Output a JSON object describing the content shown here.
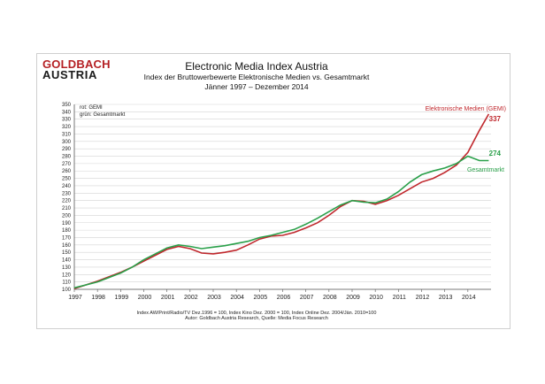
{
  "logo": {
    "line1": "GOLDBACH",
    "line2": "AUSTRIA"
  },
  "header": {
    "title": "Electronic Media Index Austria",
    "subtitle": "Index der Bruttowerbewerte Elektronische Medien vs. Gesamtmarkt",
    "period": "Jänner 1997 –  Dezember 2014"
  },
  "legend": {
    "red": "rot: GEMI",
    "green": "grün: Gesamtmarkt"
  },
  "footer": {
    "line1": "Index AW/Print/Radio/TV Dez.1996 = 100, Index Kino Dez. 2000 = 100, Index Online Dez. 2004/Jän. 2010=100",
    "line2": "Autor: Goldbach Austria Research, Quelle: Media Focus Research"
  },
  "colors": {
    "red": "#c0282d",
    "green": "#2aa04a",
    "grid": "#d4d4d4",
    "axis": "#555555"
  },
  "chart_data": {
    "type": "line",
    "title": "Electronic Media Index Austria",
    "xlabel": "",
    "ylabel": "",
    "xlim": [
      1997,
      2015
    ],
    "ylim": [
      100,
      350
    ],
    "yticks": [
      100,
      110,
      120,
      130,
      140,
      150,
      160,
      170,
      180,
      190,
      200,
      210,
      220,
      230,
      240,
      250,
      260,
      270,
      280,
      290,
      300,
      310,
      320,
      330,
      340,
      350
    ],
    "xticks": [
      "1997",
      "1998",
      "1999",
      "2000",
      "2001",
      "2002",
      "2003",
      "2004",
      "2005",
      "2006",
      "2007",
      "2008",
      "2009",
      "2010",
      "2011",
      "2012",
      "2013",
      "2014"
    ],
    "series": [
      {
        "name": "Elektronische Medien (GEMI)",
        "color": "#c0282d",
        "end_label": "337",
        "x": [
          1997,
          1997.5,
          1998,
          1998.5,
          1999,
          1999.5,
          2000,
          2000.5,
          2001,
          2001.5,
          2002,
          2002.5,
          2003,
          2003.5,
          2004,
          2004.5,
          2005,
          2005.5,
          2006,
          2006.5,
          2007,
          2007.5,
          2008,
          2008.5,
          2009,
          2009.5,
          2010,
          2010.5,
          2011,
          2011.5,
          2012,
          2012.5,
          2013,
          2013.5,
          2014,
          2014.5,
          2014.9
        ],
        "values": [
          101,
          106,
          111,
          117,
          123,
          130,
          138,
          146,
          154,
          158,
          155,
          149,
          148,
          150,
          153,
          160,
          168,
          172,
          173,
          177,
          183,
          190,
          200,
          212,
          220,
          219,
          215,
          220,
          227,
          236,
          245,
          250,
          258,
          268,
          285,
          315,
          337
        ]
      },
      {
        "name": "Gesamtmarkt",
        "color": "#2aa04a",
        "end_label": "274",
        "x": [
          1997,
          1997.5,
          1998,
          1998.5,
          1999,
          1999.5,
          2000,
          2000.5,
          2001,
          2001.5,
          2002,
          2002.5,
          2003,
          2003.5,
          2004,
          2004.5,
          2005,
          2005.5,
          2006,
          2006.5,
          2007,
          2007.5,
          2008,
          2008.5,
          2009,
          2009.5,
          2010,
          2010.5,
          2011,
          2011.5,
          2012,
          2012.5,
          2013,
          2013.5,
          2014,
          2014.5,
          2014.9
        ],
        "values": [
          102,
          106,
          110,
          116,
          122,
          130,
          140,
          148,
          156,
          160,
          158,
          155,
          157,
          159,
          162,
          165,
          170,
          173,
          177,
          181,
          188,
          196,
          205,
          214,
          220,
          218,
          217,
          222,
          232,
          245,
          255,
          260,
          264,
          270,
          280,
          274,
          274
        ]
      }
    ]
  }
}
